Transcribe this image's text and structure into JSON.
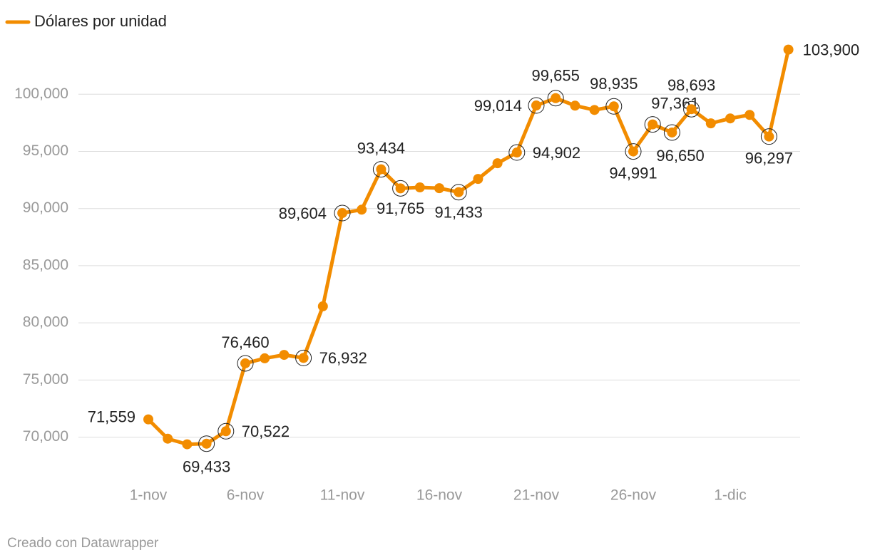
{
  "chart_data": {
    "type": "line",
    "categories": [
      "1-nov",
      null,
      null,
      null,
      null,
      "6-nov",
      null,
      null,
      null,
      null,
      "11-nov",
      null,
      null,
      null,
      null,
      "16-nov",
      null,
      null,
      null,
      null,
      "21-nov",
      null,
      null,
      null,
      null,
      "26-nov",
      null,
      null,
      null,
      null,
      "1-dic",
      null,
      null,
      null
    ],
    "series": [
      {
        "name": "Dólares por unidad",
        "color": "#f28c00",
        "values": [
          71559,
          69870,
          69380,
          69433,
          70522,
          76460,
          76900,
          77200,
          76932,
          81450,
          89604,
          89900,
          93434,
          91765,
          91850,
          91780,
          91433,
          92590,
          93960,
          94902,
          99014,
          99655,
          99000,
          98620,
          98935,
          94991,
          97361,
          96650,
          98693,
          97450,
          97880,
          98190,
          96297,
          103900
        ],
        "value_labels": [
          "71,559",
          null,
          null,
          "69,433",
          "70,522",
          "76,460",
          null,
          null,
          "76,932",
          null,
          "89,604",
          null,
          "93,434",
          "91,765",
          null,
          null,
          "91,433",
          null,
          null,
          "94,902",
          "99,014",
          "99,655",
          null,
          null,
          "98,935",
          "94,991",
          "97,361",
          "96,650",
          "98,693",
          null,
          null,
          null,
          "96,297",
          "103,900"
        ]
      }
    ],
    "ylim": [
      66800,
      104500
    ],
    "yticks": [
      {
        "value": 70000,
        "label": "70,000"
      },
      {
        "value": 75000,
        "label": "75,000"
      },
      {
        "value": 80000,
        "label": "80,000"
      },
      {
        "value": 85000,
        "label": "85,000"
      },
      {
        "value": 90000,
        "label": "90,000"
      },
      {
        "value": 95000,
        "label": "95,000"
      },
      {
        "value": 100000,
        "label": "100,000"
      }
    ],
    "grid": true,
    "legend": "top-left",
    "credit": "Creado con Datawrapper"
  }
}
